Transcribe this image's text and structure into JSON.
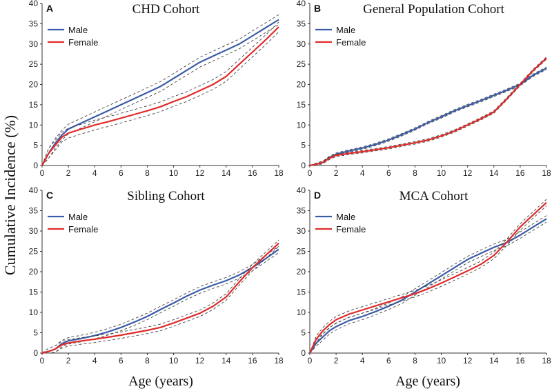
{
  "figure": {
    "ylabel": "Cumulative Incidence (%)",
    "xlabel": "Age (years)"
  },
  "colors": {
    "male": "#3a5ba8",
    "female": "#e02a2a",
    "ci": "#444444"
  },
  "chart_data": [
    {
      "type": "line",
      "panel": "A",
      "title": "CHD Cohort",
      "xlim": [
        0,
        18
      ],
      "ylim": [
        0,
        40
      ],
      "xticks": [
        0,
        2,
        4,
        6,
        8,
        10,
        12,
        14,
        16,
        18
      ],
      "yticks": [
        0,
        5,
        10,
        15,
        20,
        25,
        30,
        35,
        40
      ],
      "legend": [
        "Male",
        "Female"
      ],
      "x": [
        0,
        0.5,
        1,
        1.5,
        2,
        3,
        4,
        5,
        6,
        7,
        8,
        9,
        10,
        11,
        12,
        13,
        14,
        15,
        16,
        17,
        18
      ],
      "series": [
        {
          "name": "Male",
          "values": [
            0,
            3,
            5.5,
            7.5,
            9,
            10.5,
            12,
            13.5,
            15,
            16.5,
            18,
            19.5,
            21.5,
            23.5,
            25.5,
            27,
            28.5,
            30,
            32,
            34,
            36
          ],
          "ci_width": 1.2
        },
        {
          "name": "Female",
          "values": [
            0,
            3,
            5,
            7,
            8,
            9,
            10,
            10.8,
            11.7,
            12.6,
            13.5,
            14.5,
            15.8,
            17,
            18.5,
            20,
            22,
            25,
            28,
            31,
            34.2
          ],
          "ci_width": 1.2
        }
      ]
    },
    {
      "type": "line",
      "panel": "B",
      "title": "General Population Cohort",
      "xlim": [
        0,
        18
      ],
      "ylim": [
        0,
        40
      ],
      "xticks": [
        0,
        2,
        4,
        6,
        8,
        10,
        12,
        14,
        16,
        18
      ],
      "yticks": [
        0,
        5,
        10,
        15,
        20,
        25,
        30,
        35,
        40
      ],
      "legend": [
        "Male",
        "Female"
      ],
      "x": [
        0,
        0.5,
        1,
        1.5,
        2,
        3,
        4,
        5,
        6,
        7,
        8,
        9,
        10,
        11,
        12,
        13,
        14,
        15,
        16,
        17,
        18
      ],
      "series": [
        {
          "name": "Male",
          "values": [
            0,
            0.3,
            0.8,
            2,
            2.8,
            3.6,
            4.3,
            5.2,
            6.3,
            7.6,
            9,
            10.6,
            12,
            13.5,
            14.8,
            16,
            17.3,
            18.6,
            20,
            22.3,
            24
          ],
          "ci_width": 0.3
        },
        {
          "name": "Female",
          "values": [
            0,
            0.3,
            0.8,
            1.8,
            2.5,
            3,
            3.4,
            3.9,
            4.4,
            5,
            5.6,
            6.3,
            7.3,
            8.5,
            10,
            11.5,
            13.2,
            16.5,
            20,
            23.5,
            26.5
          ],
          "ci_width": 0.3
        }
      ]
    },
    {
      "type": "line",
      "panel": "C",
      "title": "Sibling Cohort",
      "xlim": [
        0,
        18
      ],
      "ylim": [
        0,
        40
      ],
      "xticks": [
        0,
        2,
        4,
        6,
        8,
        10,
        12,
        14,
        16,
        18
      ],
      "yticks": [
        0,
        5,
        10,
        15,
        20,
        25,
        30,
        35,
        40
      ],
      "legend": [
        "Male",
        "Female"
      ],
      "x": [
        0,
        0.5,
        1,
        1.5,
        2,
        3,
        4,
        5,
        6,
        7,
        8,
        9,
        10,
        11,
        12,
        13,
        14,
        15,
        16,
        17,
        18
      ],
      "series": [
        {
          "name": "Male",
          "values": [
            0,
            0.4,
            1,
            2.3,
            3,
            3.6,
            4.3,
            5.2,
            6.3,
            7.6,
            9,
            10.7,
            12.3,
            14,
            15.5,
            16.7,
            17.8,
            19.2,
            21,
            23.2,
            25.5
          ],
          "ci_width": 0.8
        },
        {
          "name": "Female",
          "values": [
            0,
            0.4,
            1,
            2,
            2.5,
            3,
            3.4,
            3.9,
            4.4,
            5,
            5.6,
            6.3,
            7.4,
            8.6,
            9.8,
            11.5,
            13.8,
            17.5,
            21,
            24,
            27
          ],
          "ci_width": 0.8
        }
      ]
    },
    {
      "type": "line",
      "panel": "D",
      "title": "MCA Cohort",
      "xlim": [
        0,
        18
      ],
      "ylim": [
        0,
        40
      ],
      "xticks": [
        0,
        2,
        4,
        6,
        8,
        10,
        12,
        14,
        16,
        18
      ],
      "yticks": [
        0,
        5,
        10,
        15,
        20,
        25,
        30,
        35,
        40
      ],
      "legend": [
        "Male",
        "Female"
      ],
      "x": [
        0,
        0.5,
        1,
        1.5,
        2,
        3,
        4,
        5,
        6,
        7,
        8,
        9,
        10,
        11,
        12,
        13,
        14,
        15,
        16,
        17,
        18
      ],
      "series": [
        {
          "name": "Male",
          "values": [
            0,
            2.5,
            4,
            5.5,
            6.5,
            8,
            9,
            10.2,
            11.5,
            13,
            15,
            17,
            19,
            21,
            23,
            24.5,
            26,
            27.2,
            29,
            31,
            33
          ],
          "ci_width": 0.8
        },
        {
          "name": "Female",
          "values": [
            0,
            3.5,
            5.5,
            7,
            8.2,
            9.6,
            10.6,
            11.6,
            12.6,
            13.6,
            14.6,
            15.8,
            17.2,
            18.7,
            20.2,
            21.8,
            24,
            27.3,
            31,
            34,
            37
          ],
          "ci_width": 0.8
        }
      ]
    }
  ]
}
